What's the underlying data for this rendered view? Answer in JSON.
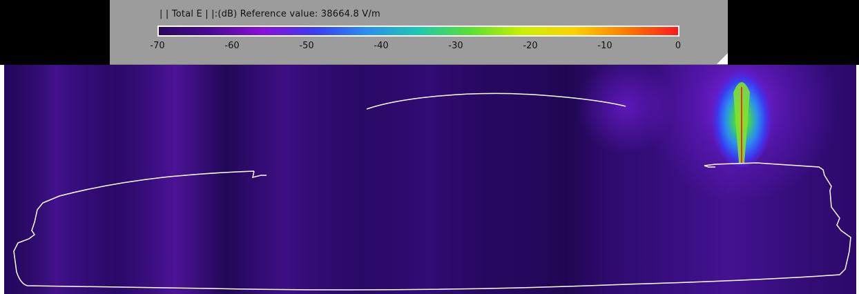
{
  "legend": {
    "title": "| | Total E | |:(dB) Reference value: 38664.8 V/m",
    "ticks": [
      "-70",
      "-60",
      "-50",
      "-40",
      "-30",
      "-20",
      "-10",
      "0"
    ],
    "colormap": [
      "#2a0860",
      "#4b0a96",
      "#8a10d8",
      "#3a3cf0",
      "#2a8ff0",
      "#1ec8b0",
      "#58e030",
      "#c8f000",
      "#ffd000",
      "#ff7a00",
      "#ff1a1a"
    ]
  },
  "colors": {
    "background": "#25085e",
    "outline": "#ffffff",
    "panel": "#9c9c9c"
  }
}
